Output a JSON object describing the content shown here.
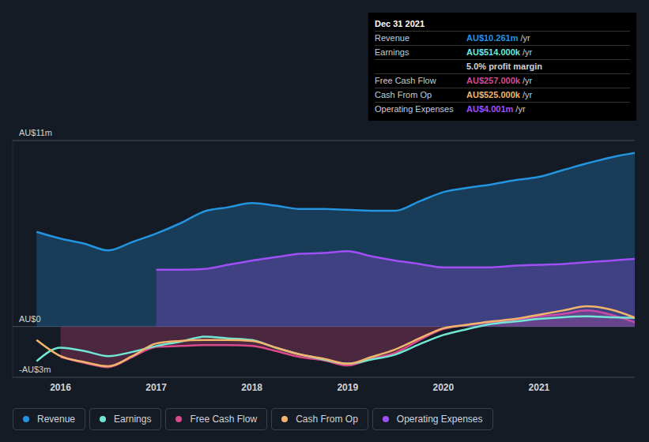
{
  "chart_data": {
    "type": "line",
    "x": [
      2015.75,
      2016,
      2016.25,
      2016.5,
      2016.75,
      2017,
      2017.25,
      2017.5,
      2017.75,
      2018,
      2018.25,
      2018.5,
      2018.75,
      2019,
      2019.25,
      2019.5,
      2019.75,
      2020,
      2020.25,
      2020.5,
      2020.75,
      2021,
      2021.25,
      2021.5,
      2021.75,
      2022
    ],
    "xlim": [
      2015.5,
      2022
    ],
    "xticks": [
      2016,
      2017,
      2018,
      2019,
      2020,
      2021
    ],
    "ylim": [
      -3,
      11
    ],
    "yticks": [
      {
        "value": -3,
        "label": "-AU$3m"
      },
      {
        "value": 0,
        "label": "AU$0"
      },
      {
        "value": 11,
        "label": "AU$11m"
      }
    ],
    "grid": true,
    "legend": "bottom",
    "series": [
      {
        "name": "Revenue",
        "color": "#2394df",
        "type": "area",
        "values": [
          5.6,
          5.2,
          4.9,
          4.5,
          5.0,
          5.5,
          6.1,
          6.8,
          7.05,
          7.3,
          7.15,
          6.95,
          6.95,
          6.9,
          6.85,
          6.85,
          7.4,
          7.95,
          8.2,
          8.4,
          8.65,
          8.85,
          9.25,
          9.65,
          10.0,
          10.261
        ]
      },
      {
        "name": "Earnings",
        "color": "#71e7d6",
        "type": "line",
        "values": [
          -2.05,
          -1.25,
          -1.45,
          -1.75,
          -1.5,
          -1.15,
          -0.9,
          -0.6,
          -0.7,
          -0.8,
          -1.25,
          -1.65,
          -1.95,
          -2.2,
          -1.95,
          -1.65,
          -1.05,
          -0.5,
          -0.15,
          0.15,
          0.3,
          0.45,
          0.55,
          0.6,
          0.55,
          0.514
        ]
      },
      {
        "name": "Free Cash Flow",
        "color": "#d84a8a",
        "type": "area",
        "values": [
          null,
          -1.8,
          -2.15,
          -2.4,
          -1.8,
          -1.2,
          -1.15,
          -1.1,
          -1.1,
          -1.15,
          -1.45,
          -1.8,
          -2.0,
          -2.3,
          -1.9,
          -1.55,
          -0.8,
          -0.15,
          0.1,
          0.25,
          0.4,
          0.6,
          0.75,
          0.95,
          0.7,
          0.257
        ]
      },
      {
        "name": "Cash From Op",
        "color": "#f2b56b",
        "type": "line",
        "values": [
          -0.8,
          -1.75,
          -2.1,
          -2.35,
          -1.75,
          -1.0,
          -0.85,
          -0.8,
          -0.8,
          -0.85,
          -1.25,
          -1.65,
          -1.9,
          -2.2,
          -1.8,
          -1.35,
          -0.7,
          -0.1,
          0.1,
          0.3,
          0.45,
          0.7,
          0.95,
          1.2,
          1.0,
          0.525
        ]
      },
      {
        "name": "Operating Expenses",
        "color": "#a04ef6",
        "type": "area",
        "values": [
          null,
          null,
          null,
          null,
          null,
          3.36,
          3.36,
          3.4,
          3.65,
          3.9,
          4.1,
          4.3,
          4.35,
          4.45,
          4.15,
          3.9,
          3.7,
          3.5,
          3.5,
          3.5,
          3.6,
          3.65,
          3.7,
          3.8,
          3.9,
          4.001
        ]
      }
    ],
    "annotations": {
      "title": "Dec 31 2021",
      "rows": [
        {
          "label": "Revenue",
          "value": "AU$10.261m",
          "unit": "/yr",
          "color": "#2394df"
        },
        {
          "label": "Earnings",
          "value": "AU$514.000k",
          "unit": "/yr",
          "color": "#71e7d6"
        },
        {
          "value": "5.0% profit margin",
          "color": "#d0d4da"
        },
        {
          "label": "Free Cash Flow",
          "value": "AU$257.000k",
          "unit": "/yr",
          "color": "#d84a8a"
        },
        {
          "label": "Cash From Op",
          "value": "AU$525.000k",
          "unit": "/yr",
          "color": "#f2b56b"
        },
        {
          "label": "Operating Expenses",
          "value": "AU$4.001m",
          "unit": "/yr",
          "color": "#a04ef6"
        }
      ]
    }
  }
}
